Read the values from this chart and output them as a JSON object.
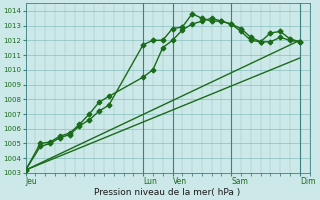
{
  "background_color": "#cce8e8",
  "grid_color": "#7ab5b5",
  "line_color": "#1a6b1a",
  "title": "Pression niveau de la mer( hPa )",
  "ylim": [
    1003,
    1014.5
  ],
  "yticks": [
    1003,
    1004,
    1005,
    1006,
    1007,
    1008,
    1009,
    1010,
    1011,
    1012,
    1013,
    1014
  ],
  "xtick_labels": [
    "Jeu",
    "Lun",
    "Ven",
    "Sam",
    "Dim"
  ],
  "xtick_positions": [
    0,
    48,
    60,
    84,
    112
  ],
  "vline_positions": [
    48,
    60,
    84,
    112
  ],
  "series": [
    {
      "x": [
        0,
        6,
        10,
        14,
        18,
        22,
        26,
        30,
        34,
        48,
        52,
        56,
        60,
        64,
        68,
        72,
        76,
        80,
        84,
        88,
        92,
        96,
        100,
        104,
        108,
        112
      ],
      "y": [
        1003.2,
        1004.8,
        1005.0,
        1005.4,
        1005.6,
        1006.2,
        1006.6,
        1007.2,
        1007.6,
        1011.7,
        1012.0,
        1012.0,
        1012.8,
        1012.9,
        1013.8,
        1013.5,
        1013.3,
        1013.3,
        1013.1,
        1012.8,
        1012.2,
        1011.9,
        1012.5,
        1012.6,
        1012.1,
        1011.9
      ],
      "marker": "D",
      "markersize": 2.5,
      "linestyle": "-",
      "linewidth": 1.0
    },
    {
      "x": [
        0,
        6,
        10,
        14,
        18,
        22,
        26,
        30,
        34,
        48,
        52,
        56,
        60,
        64,
        68,
        72,
        76,
        80,
        84,
        88,
        92,
        96,
        100,
        104,
        108,
        112
      ],
      "y": [
        1003.2,
        1005.0,
        1005.1,
        1005.5,
        1005.7,
        1006.3,
        1007.0,
        1007.8,
        1008.2,
        1009.5,
        1010.0,
        1011.5,
        1012.0,
        1012.7,
        1013.1,
        1013.3,
        1013.5,
        1013.3,
        1013.1,
        1012.6,
        1012.0,
        1011.9,
        1011.9,
        1012.2,
        1012.0,
        1011.9
      ],
      "marker": "P",
      "markersize": 3,
      "linestyle": "-",
      "linewidth": 1.0
    },
    {
      "x": [
        0,
        112
      ],
      "y": [
        1003.2,
        1010.8
      ],
      "marker": null,
      "markersize": 0,
      "linestyle": "-",
      "linewidth": 1.0
    },
    {
      "x": [
        0,
        112
      ],
      "y": [
        1003.2,
        1012.0
      ],
      "marker": null,
      "markersize": 0,
      "linestyle": "-",
      "linewidth": 1.0
    }
  ]
}
